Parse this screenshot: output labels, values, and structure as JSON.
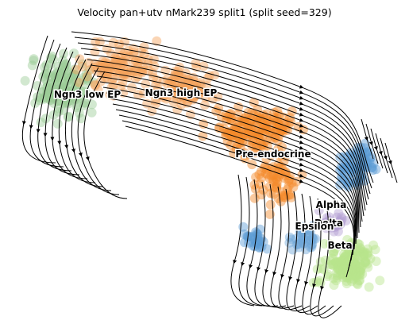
{
  "chart_data": {
    "type": "scatter",
    "title": "Velocity pan+utv nMark239 split1 (split seed=329)",
    "xlabel": "",
    "ylabel": "",
    "grid": false,
    "axes_visible": false,
    "overlay": "velocity stream lines",
    "series": [
      {
        "name": "Ngn3 low EP",
        "color": "#9ccb96"
      },
      {
        "name": "Ngn3 high EP",
        "color": "#f4a15c"
      },
      {
        "name": "Pre-endocrine",
        "color": "#f58a2a"
      },
      {
        "name": "Alpha",
        "color": "#5b9bd5"
      },
      {
        "name": "Beta",
        "color": "#b7e48c"
      },
      {
        "name": "Delta",
        "color": "#b49fd3"
      },
      {
        "name": "Epsilon",
        "color": "#6fa6d6"
      }
    ],
    "cluster_labels": [
      {
        "text": "Ngn3 low EP"
      },
      {
        "text": "Ngn3 high EP"
      },
      {
        "text": "Pre-endocrine"
      },
      {
        "text": "Alpha"
      },
      {
        "text": "Delta"
      },
      {
        "text": "Epsilon"
      },
      {
        "text": "Beta"
      }
    ]
  }
}
